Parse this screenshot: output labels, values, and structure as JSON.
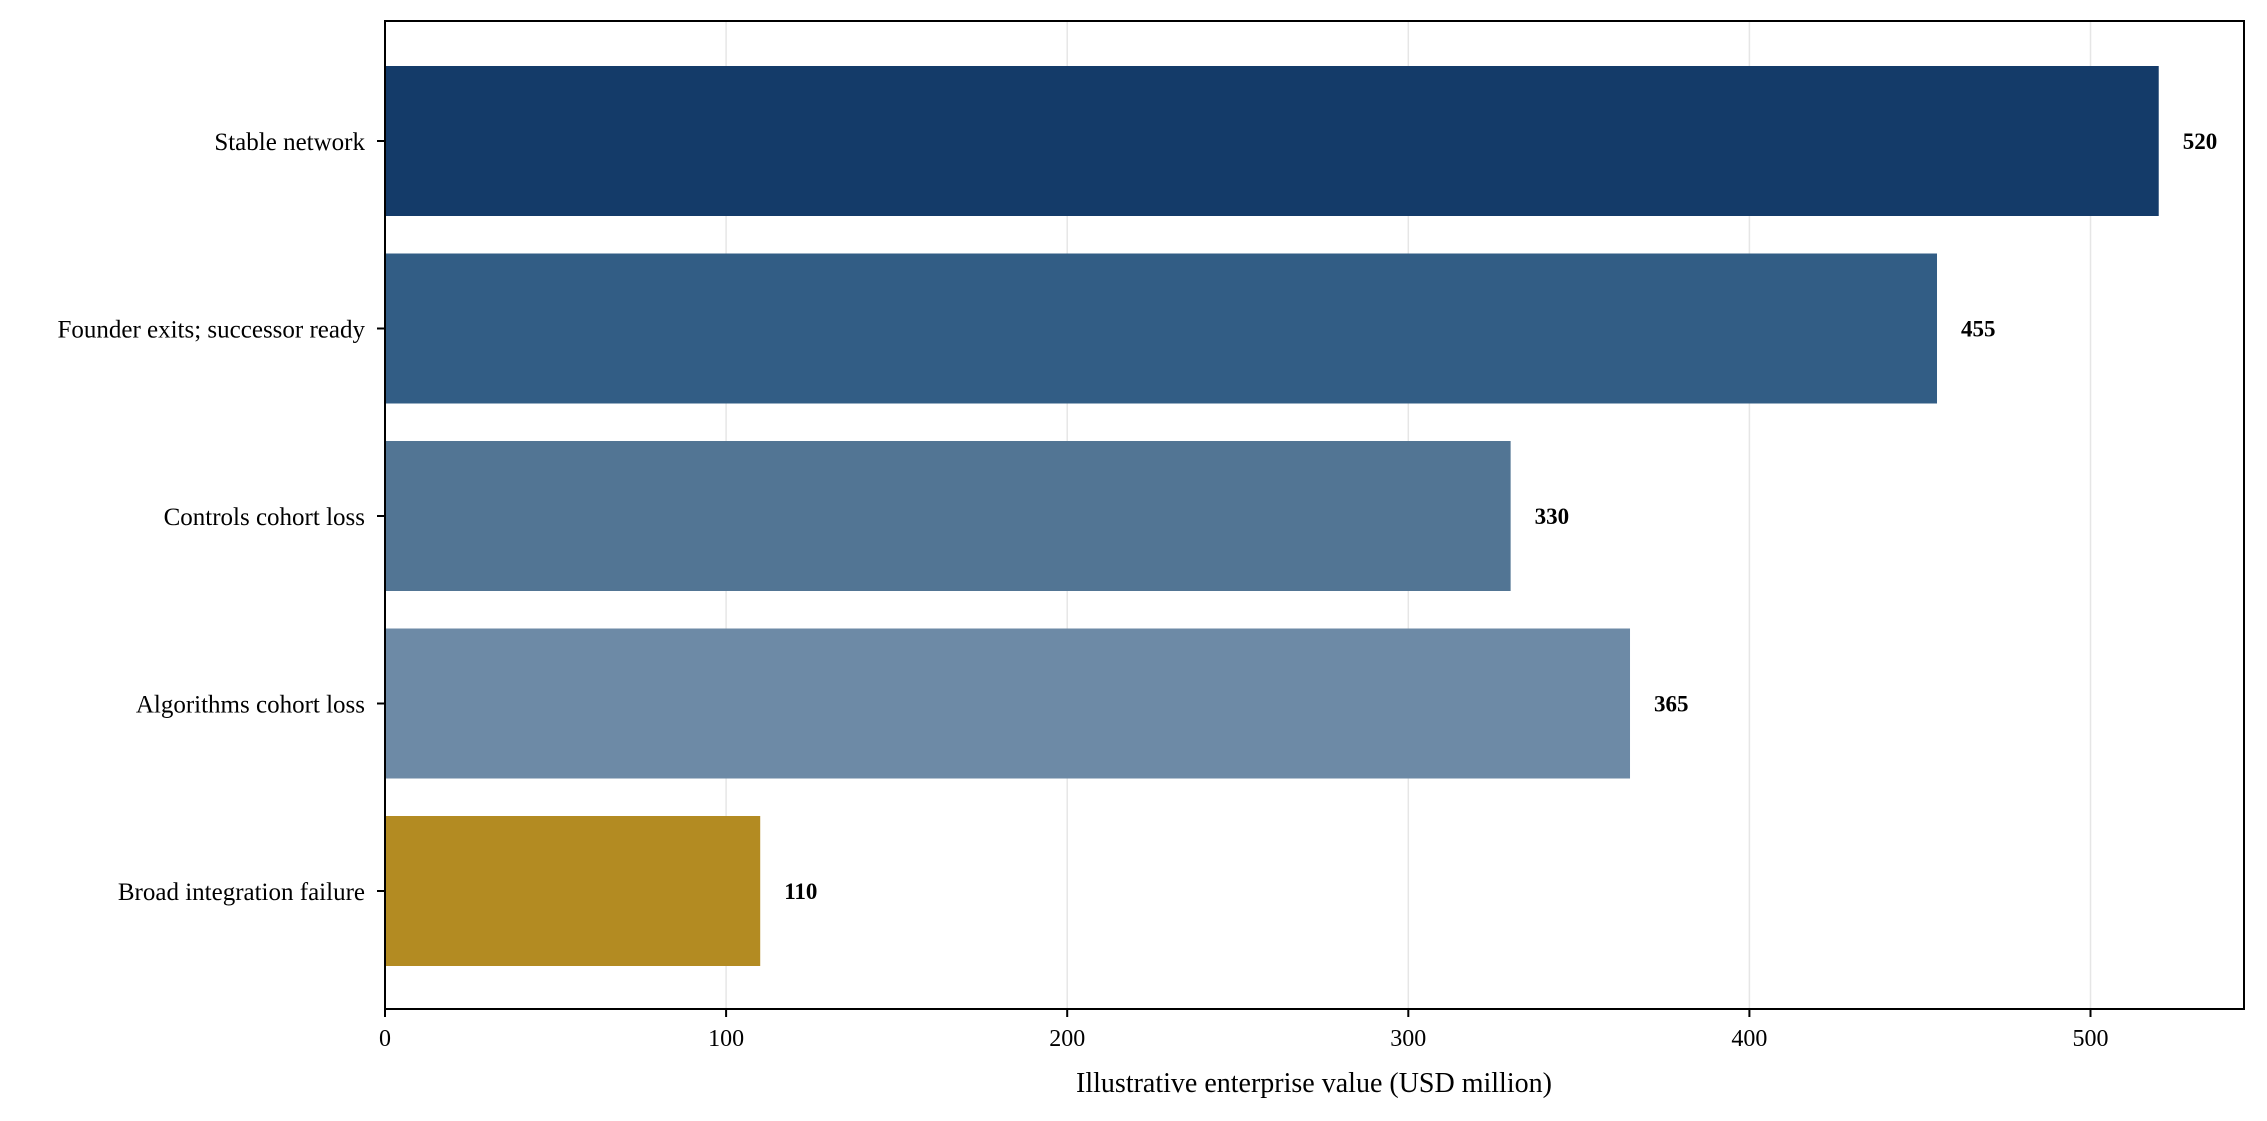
{
  "chart_data": {
    "type": "bar",
    "orientation": "horizontal",
    "title": "",
    "xlabel": "Illustrative enterprise value (USD million)",
    "ylabel": "",
    "xlim": [
      0,
      545
    ],
    "xticks": [
      0,
      100,
      200,
      300,
      400,
      500
    ],
    "grid": "vertical",
    "legend": "none",
    "categories": [
      "Stable network",
      "Founder exits; successor ready",
      "Controls cohort loss",
      "Algorithms cohort loss",
      "Broad integration failure"
    ],
    "values": [
      520,
      455,
      330,
      365,
      110
    ],
    "value_labels": [
      "520",
      "455",
      "330",
      "365",
      "110"
    ],
    "colors": [
      "#143b69",
      "#325d85",
      "#527594",
      "#6d8aa6",
      "#b38b22"
    ]
  }
}
